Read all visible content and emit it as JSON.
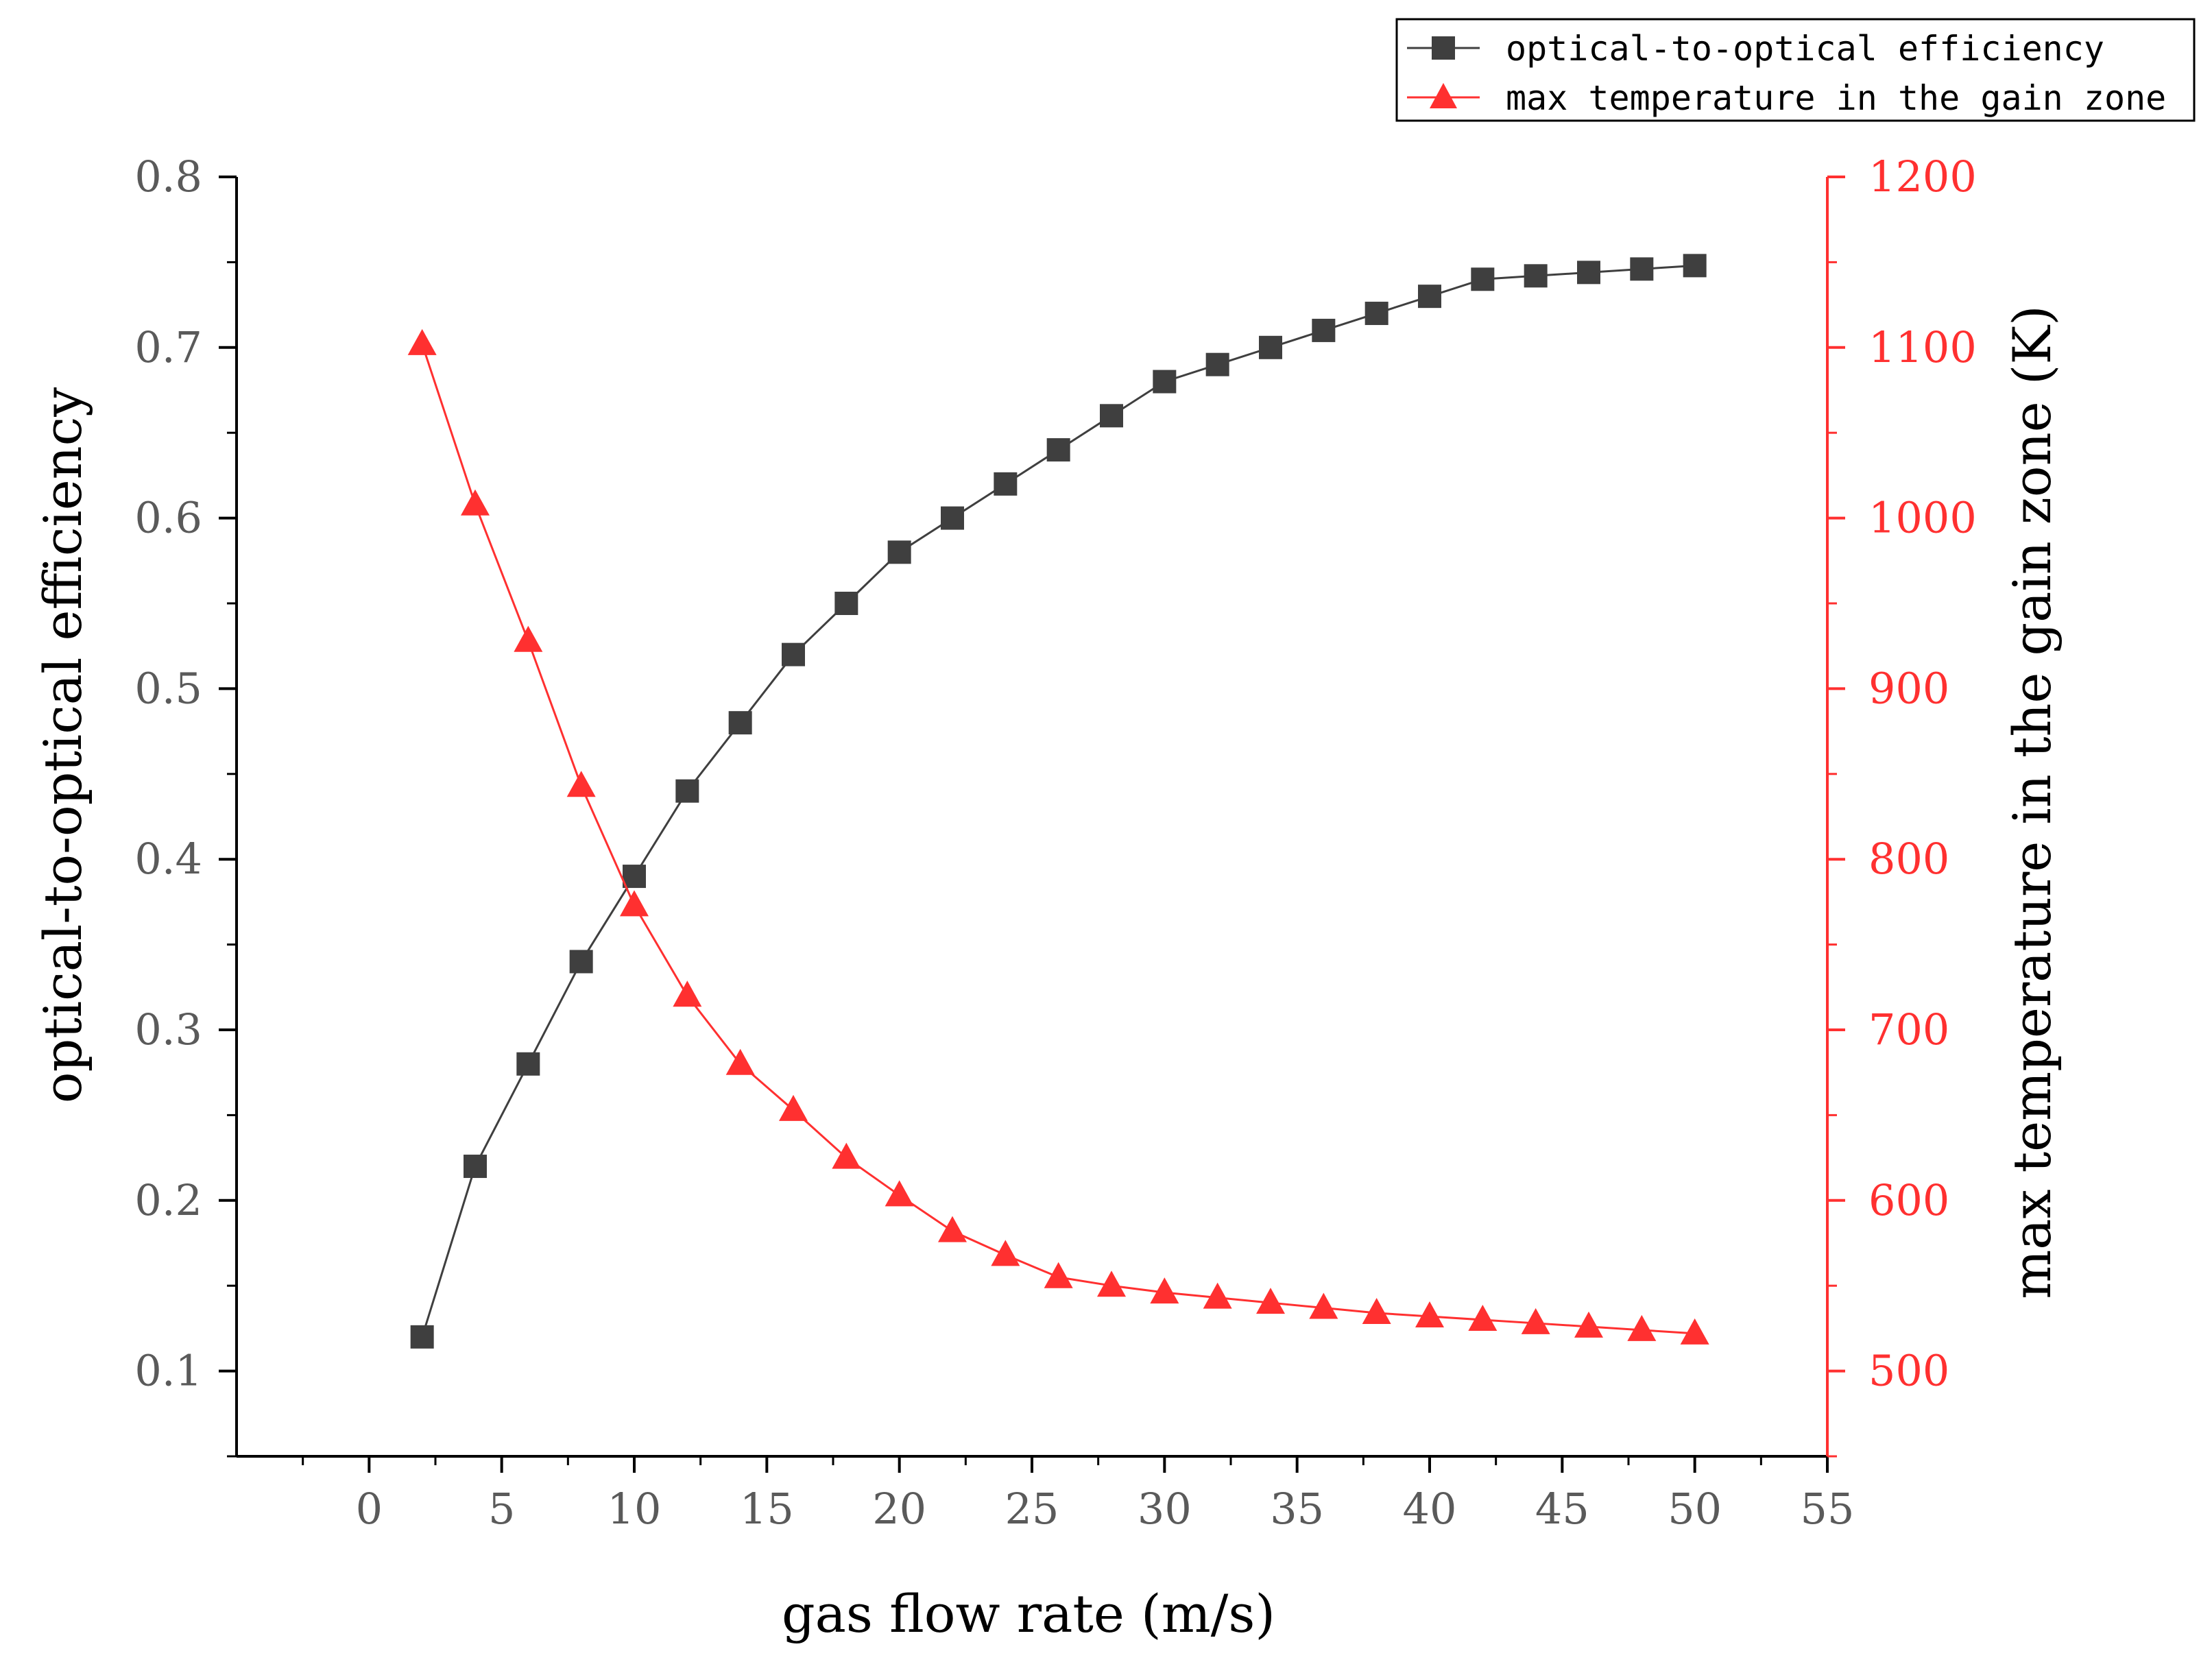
{
  "chart_data": {
    "type": "line",
    "x": [
      2,
      4,
      6,
      8,
      10,
      12,
      14,
      16,
      18,
      20,
      22,
      24,
      26,
      28,
      30,
      32,
      34,
      36,
      38,
      40,
      42,
      44,
      46,
      48,
      50
    ],
    "xlabel": "gas flow rate (m/s)",
    "xlim": [
      -5,
      55
    ],
    "xticks": [
      0,
      5,
      10,
      15,
      20,
      25,
      30,
      35,
      40,
      45,
      50,
      55
    ],
    "xtick_labels": [
      "0",
      "5",
      "10",
      "15",
      "20",
      "25",
      "30",
      "35",
      "40",
      "45",
      "50",
      "55"
    ],
    "ylabel": "optical-to-optical efficiency",
    "ylim": [
      0.05,
      0.8
    ],
    "yticks": [
      0.1,
      0.2,
      0.3,
      0.4,
      0.5,
      0.6,
      0.7,
      0.8
    ],
    "ytick_labels": [
      "0.1",
      "0.2",
      "0.3",
      "0.4",
      "0.5",
      "0.6",
      "0.7",
      "0.8"
    ],
    "y2label": "max temperature in the gain zone (K)",
    "y2lim": [
      450,
      1200
    ],
    "y2ticks": [
      500,
      600,
      700,
      800,
      900,
      1000,
      1100,
      1200
    ],
    "y2tick_labels": [
      "500",
      "600",
      "700",
      "800",
      "900",
      "1000",
      "1100",
      "1200"
    ],
    "grid": false,
    "legend_position": "top-right",
    "series": [
      {
        "name": "optical-to-optical efficiency",
        "axis": "left",
        "marker": "square",
        "color": "#3f3f3f",
        "values": [
          0.12,
          0.22,
          0.28,
          0.34,
          0.39,
          0.44,
          0.48,
          0.52,
          0.55,
          0.58,
          0.6,
          0.62,
          0.64,
          0.66,
          0.68,
          0.69,
          0.7,
          0.71,
          0.72,
          0.73,
          0.74,
          0.742,
          0.744,
          0.746,
          0.748
        ]
      },
      {
        "name": "max temperature in the gain zone",
        "axis": "right",
        "marker": "triangle",
        "color": "#ff3030",
        "values": [
          1102,
          1008,
          928,
          843,
          773,
          720,
          680,
          653,
          625,
          603,
          582,
          568,
          555,
          550,
          546,
          543,
          540,
          537,
          534,
          532,
          530,
          528,
          526,
          524,
          522
        ]
      }
    ]
  },
  "colors": {
    "axis": "#000000",
    "right_axis": "#ff3030",
    "tick_text": "#5a5a5a"
  }
}
